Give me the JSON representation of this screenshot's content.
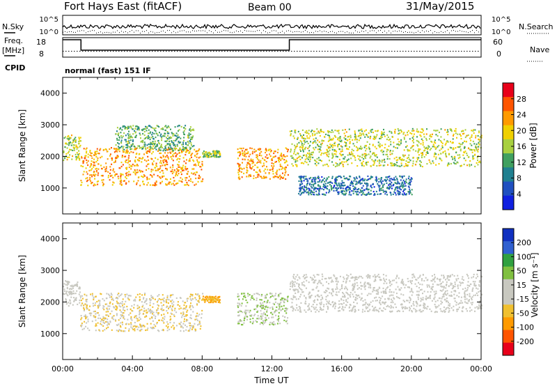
{
  "header": {
    "station": "Fort Hays East (fitACF)",
    "beam": "Beam 00",
    "date": "31/May/2015"
  },
  "status_panels": {
    "nsky_label": "N.Sky",
    "nsearch_label": "N.Search",
    "noise_ticks": [
      "10^5",
      "10^0"
    ],
    "freq_label_line1": "Freq.",
    "freq_label_line2": "[MHz]",
    "freq_ticks": [
      "18",
      "8"
    ],
    "nave_label": "Nave",
    "nave_ticks": [
      "60",
      "0"
    ],
    "cpid_label": "CPID",
    "cpid_value": "normal (fast) 151 IF"
  },
  "chart_data": [
    {
      "type": "heatmap",
      "panel": "power",
      "title": "",
      "xlabel": "",
      "ylabel": "Slant Range [km]",
      "xlim": [
        "00:00",
        "24:00"
      ],
      "ylim": [
        180,
        4500
      ],
      "y_ticks": [
        1000,
        2000,
        3000,
        4000
      ],
      "colorbar": {
        "label": "Power [dB]",
        "ticks": [
          "28",
          "24",
          "20",
          "16",
          "12",
          "8",
          "4"
        ],
        "colors": [
          "#e8001a",
          "#ff5500",
          "#ff9a00",
          "#f0d000",
          "#a8d040",
          "#40a060",
          "#208090",
          "#2050c0",
          "#1020e0"
        ]
      },
      "scatter_regions": [
        {
          "t_start": 0.0,
          "t_end": 1.0,
          "r_start": 1900,
          "r_end": 2700,
          "power": 16
        },
        {
          "t_start": 1.0,
          "t_end": 8.0,
          "r_start": 1100,
          "r_end": 2300,
          "power": 22
        },
        {
          "t_start": 3.0,
          "t_end": 7.5,
          "r_start": 2200,
          "r_end": 3000,
          "power": 12
        },
        {
          "t_start": 8.0,
          "t_end": 9.0,
          "r_start": 2000,
          "r_end": 2200,
          "power": 14
        },
        {
          "t_start": 10.0,
          "t_end": 12.9,
          "r_start": 1300,
          "r_end": 2300,
          "power": 22
        },
        {
          "t_start": 13.0,
          "t_end": 24.0,
          "r_start": 1700,
          "r_end": 2900,
          "power": 16
        },
        {
          "t_start": 13.5,
          "t_end": 20.0,
          "r_start": 800,
          "r_end": 1400,
          "power": 6
        }
      ]
    },
    {
      "type": "heatmap",
      "panel": "velocity",
      "title": "",
      "xlabel": "Time UT",
      "ylabel": "Slant Range [km]",
      "xlim": [
        "00:00",
        "24:00"
      ],
      "ylim": [
        180,
        4500
      ],
      "y_ticks": [
        1000,
        2000,
        3000,
        4000
      ],
      "x_ticks": [
        "00:00",
        "04:00",
        "08:00",
        "12:00",
        "16:00",
        "20:00",
        "00:00"
      ],
      "colorbar": {
        "label": "Velocity [m s⁻¹]",
        "ticks": [
          "200",
          "100",
          "50",
          "15",
          "-15",
          "-50",
          "-100",
          "-200"
        ],
        "colors": [
          "#1030c0",
          "#3060d0",
          "#30a040",
          "#80c040",
          "#c8c8c0",
          "#c8c8c0",
          "#f0c030",
          "#ff9a00",
          "#ff5500",
          "#e8001a"
        ]
      },
      "scatter_regions": [
        {
          "t_start": 0.0,
          "t_end": 1.0,
          "r_start": 1900,
          "r_end": 2700,
          "velocity": 0
        },
        {
          "t_start": 1.0,
          "t_end": 8.0,
          "r_start": 1100,
          "r_end": 2300,
          "velocity": -40
        },
        {
          "t_start": 8.0,
          "t_end": 9.0,
          "r_start": 2000,
          "r_end": 2200,
          "velocity": -80
        },
        {
          "t_start": 10.0,
          "t_end": 12.9,
          "r_start": 1300,
          "r_end": 2300,
          "velocity": 40
        },
        {
          "t_start": 13.0,
          "t_end": 24.0,
          "r_start": 1700,
          "r_end": 2900,
          "velocity": 0
        }
      ]
    }
  ]
}
